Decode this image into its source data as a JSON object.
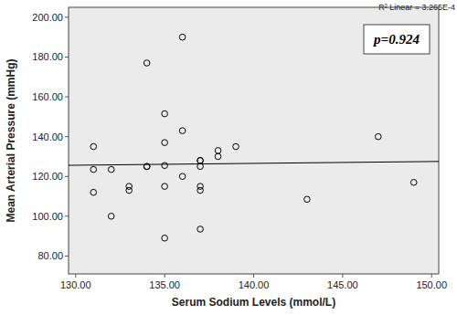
{
  "chart_data": {
    "type": "scatter",
    "x_label": "Serum Sodium Levels (mmol/L)",
    "y_label": "Mean Arterial Pressure (mmHg)",
    "annotations": [
      "p=0.924",
      "R² Linear = 3.265E-4"
    ],
    "x": [
      131,
      131,
      131,
      132,
      132,
      133,
      133,
      134,
      134,
      134,
      135,
      135,
      135,
      135,
      135,
      136,
      136,
      136,
      137,
      137,
      137,
      137,
      137,
      137,
      138,
      138,
      139,
      143,
      147,
      149
    ],
    "values": [
      135,
      123.5,
      112,
      123.5,
      100,
      115,
      113,
      177,
      125,
      125,
      151.5,
      137,
      125.5,
      115,
      89,
      190,
      143,
      120,
      128,
      128,
      125,
      115,
      113,
      93.5,
      133,
      130,
      135,
      108.5,
      140,
      117
    ],
    "color": "#000000",
    "marker": "circle",
    "xlim": [
      129.6,
      150.4
    ],
    "ylim": [
      71,
      205
    ],
    "xticks": [
      {
        "value": 130,
        "label": "130.00"
      },
      {
        "value": 135,
        "label": "135.00"
      },
      {
        "value": 140,
        "label": "140.00"
      },
      {
        "value": 145,
        "label": "145.00"
      },
      {
        "value": 150,
        "label": "150.00"
      }
    ],
    "yticks": [
      {
        "value": 80,
        "label": "80.00"
      },
      {
        "value": 100,
        "label": "100.00"
      },
      {
        "value": 120,
        "label": "120.00"
      },
      {
        "value": 140,
        "label": "140.00"
      },
      {
        "value": 160,
        "label": "160.00"
      },
      {
        "value": 180,
        "label": "180.00"
      },
      {
        "value": 200,
        "label": "200.00"
      }
    ],
    "grid": false
  }
}
